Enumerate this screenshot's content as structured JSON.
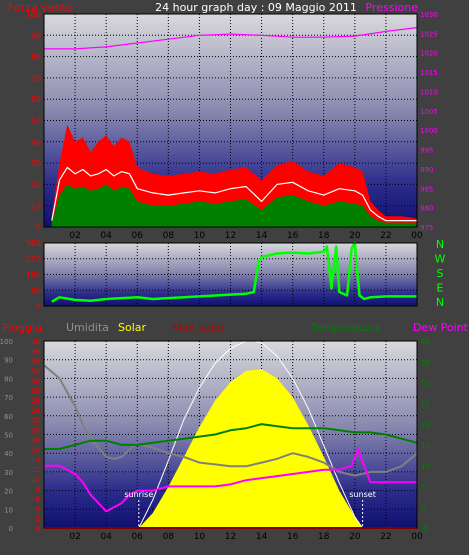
{
  "header": {
    "left_label": "Forza vento",
    "title": "24 hour graph day : 09 Maggio 2011",
    "right_label": "Pressione"
  },
  "legend_row": [
    {
      "label": "Pioggia",
      "color": "#ff0000"
    },
    {
      "label": "Umidita",
      "color": "#909090"
    },
    {
      "label": "Solar",
      "color": "#ffff00"
    },
    {
      "label": "Max solar",
      "color": "#c00000"
    },
    {
      "label": "Temperatura",
      "color": "#008000"
    },
    {
      "label": "Dew Point",
      "color": "#ff00ff"
    }
  ],
  "x_ticks": [
    "02",
    "04",
    "06",
    "08",
    "10",
    "12",
    "14",
    "16",
    "18",
    "20",
    "22",
    "00"
  ],
  "colors": {
    "background": "#404040",
    "grid": "#000000",
    "wind_gust": "#ff0000",
    "wind_avg": "#ffffff",
    "wind_speed": "#008000",
    "pressure": "#ff00ff",
    "direction": "#00ff00",
    "solar": "#ffff00",
    "max_solar": "#ffffff",
    "temperature": "#008000",
    "humidity": "#808080",
    "dew_point": "#ff00ff",
    "rain": "#ff0000"
  },
  "chart_data": [
    {
      "type": "line",
      "name": "wind-pressure",
      "left_axis": {
        "ticks": [
          "0",
          "10",
          "20",
          "30",
          "40",
          "50",
          "60",
          "70",
          "80",
          "90",
          "100"
        ],
        "ylim": [
          0,
          100
        ],
        "color": "#ff0000"
      },
      "right_axis": {
        "ticks": [
          "975",
          "980",
          "985",
          "990",
          "995",
          "1000",
          "1005",
          "1010",
          "1015",
          "1020",
          "1025",
          "1030"
        ],
        "ylim": [
          975,
          1030
        ],
        "color": "#ff00ff"
      },
      "xlim": [
        0,
        24
      ],
      "series": [
        {
          "key": "gust",
          "x": [
            0.5,
            1,
            1.5,
            2,
            2.5,
            3,
            3.5,
            4,
            4.5,
            5,
            5.5,
            6,
            7,
            8,
            9,
            10,
            11,
            12,
            13,
            14,
            15,
            16,
            17,
            18,
            19,
            20,
            20.5,
            21,
            21.5,
            22,
            23,
            24
          ],
          "values": [
            5,
            30,
            48,
            40,
            42,
            35,
            40,
            43,
            38,
            42,
            40,
            28,
            25,
            24,
            25,
            26,
            25,
            27,
            28,
            22,
            29,
            31,
            26,
            24,
            30,
            28,
            26,
            12,
            8,
            5,
            5,
            4
          ]
        },
        {
          "key": "avg",
          "x": [
            0.5,
            1,
            1.5,
            2,
            2.5,
            3,
            3.5,
            4,
            4.5,
            5,
            5.5,
            6,
            7,
            8,
            9,
            10,
            11,
            12,
            13,
            14,
            15,
            16,
            17,
            18,
            19,
            20,
            20.5,
            21,
            21.5,
            22,
            23,
            24
          ],
          "values": [
            3,
            22,
            28,
            25,
            27,
            24,
            25,
            27,
            24,
            26,
            25,
            18,
            16,
            15,
            16,
            17,
            16,
            18,
            19,
            12,
            20,
            21,
            17,
            15,
            18,
            17,
            15,
            8,
            5,
            3,
            3,
            3
          ]
        },
        {
          "key": "speed",
          "x": [
            0.5,
            1,
            1.5,
            2,
            2.5,
            3,
            3.5,
            4,
            4.5,
            5,
            5.5,
            6,
            7,
            8,
            9,
            10,
            11,
            12,
            13,
            14,
            15,
            16,
            17,
            18,
            19,
            20,
            20.5,
            21,
            21.5,
            22,
            23,
            24
          ],
          "values": [
            2,
            15,
            20,
            18,
            19,
            17,
            18,
            20,
            17,
            19,
            18,
            12,
            10,
            10,
            11,
            12,
            11,
            12,
            13,
            8,
            14,
            15,
            12,
            10,
            12,
            11,
            10,
            5,
            3,
            2,
            2,
            2
          ]
        },
        {
          "key": "pressure",
          "x": [
            0,
            2,
            4,
            6,
            8,
            10,
            12,
            14,
            16,
            18,
            20,
            22,
            24
          ],
          "values": [
            1021,
            1021,
            1021.5,
            1022.5,
            1023.5,
            1024.5,
            1024.8,
            1024.5,
            1024,
            1024,
            1024.3,
            1025.5,
            1026.5
          ]
        }
      ]
    },
    {
      "type": "line",
      "name": "wind-direction",
      "left_axis": {
        "ticks": [
          "0",
          "90",
          "180",
          "270",
          "360"
        ],
        "ylim": [
          0,
          360
        ],
        "color": "#ff0000"
      },
      "right_axis": {
        "ticks": [
          "N",
          "W",
          "S",
          "E",
          "N"
        ],
        "color": "#00ff00"
      },
      "xlim": [
        0,
        24
      ],
      "series": [
        {
          "key": "direction",
          "x": [
            0.5,
            1,
            2,
            3,
            4,
            5,
            6,
            7,
            8,
            9,
            10,
            11,
            12,
            13,
            13.5,
            13.8,
            14,
            15,
            16,
            17,
            18,
            18.2,
            18.5,
            18.8,
            19,
            19.5,
            19.8,
            20,
            20.3,
            20.6,
            21,
            22,
            23,
            24
          ],
          "values": [
            25,
            50,
            35,
            30,
            40,
            45,
            50,
            40,
            45,
            50,
            55,
            60,
            65,
            70,
            80,
            250,
            280,
            300,
            305,
            300,
            310,
            340,
            100,
            340,
            80,
            60,
            330,
            360,
            60,
            40,
            50,
            55,
            55,
            55
          ]
        }
      ]
    },
    {
      "type": "line",
      "name": "weather-solar",
      "left_axis_outer": {
        "ticks": [
          "0",
          "10",
          "20",
          "30",
          "40",
          "50",
          "60",
          "70",
          "80",
          "90",
          "100"
        ],
        "ylim": [
          0,
          100
        ],
        "color": "#909090"
      },
      "left_axis_inner": {
        "ticks": [
          "0",
          "2",
          "4",
          "6",
          "8",
          "10",
          "12",
          "14",
          "16",
          "18",
          "20",
          "22",
          "24",
          "26",
          "28",
          "30",
          "32",
          "34",
          "36",
          "38"
        ],
        "ylim": [
          0,
          38
        ],
        "color": "#ff0000"
      },
      "right_axis": {
        "ticks": [
          "-5",
          "0",
          "5",
          "10",
          "15",
          "20",
          "25",
          "30",
          "35",
          "40"
        ],
        "ylim": [
          -5,
          40
        ],
        "color": "#008000"
      },
      "annotations": {
        "sunrise_label": "sunrise",
        "sunrise_x": 6.1,
        "sunset_label": "sunset",
        "sunset_x": 20.5
      },
      "xlim": [
        0,
        24
      ],
      "series": [
        {
          "key": "solar",
          "x": [
            6.1,
            7,
            8,
            9,
            10,
            11,
            12,
            13,
            14,
            15,
            16,
            17,
            18,
            19,
            20,
            20.5
          ],
          "values": [
            0,
            8,
            22,
            38,
            54,
            68,
            78,
            84,
            85,
            80,
            70,
            55,
            38,
            20,
            6,
            0
          ]
        },
        {
          "key": "max_solar",
          "x": [
            6.1,
            7,
            8,
            9,
            10,
            11,
            12,
            13,
            13.5,
            14,
            15,
            16,
            17,
            18,
            19,
            20,
            20.5
          ],
          "values": [
            0,
            15,
            36,
            58,
            75,
            88,
            96,
            100,
            100,
            99,
            92,
            80,
            64,
            44,
            24,
            6,
            0
          ]
        },
        {
          "key": "temperature",
          "x": [
            0,
            1,
            2,
            3,
            4,
            5,
            6,
            7,
            8,
            9,
            10,
            11,
            12,
            13,
            14,
            15,
            16,
            17,
            18,
            19,
            20,
            21,
            22,
            23,
            24
          ],
          "values": [
            14,
            14,
            15,
            16,
            16,
            15,
            15,
            15.5,
            16,
            16.5,
            17,
            17.5,
            18.5,
            19,
            20,
            19.5,
            19,
            19,
            19,
            18.5,
            18,
            18,
            17.5,
            16.5,
            15.5
          ]
        },
        {
          "key": "humidity",
          "x": [
            0,
            1,
            2,
            2.5,
            3,
            3.5,
            4,
            4.5,
            5,
            5.5,
            6,
            7,
            8,
            9,
            10,
            11,
            12,
            13,
            14,
            15,
            16,
            17,
            18,
            19,
            20,
            21,
            22,
            23,
            24
          ],
          "values": [
            87,
            80,
            65,
            55,
            48,
            43,
            38,
            37,
            38,
            42,
            45,
            43,
            40,
            38,
            35,
            34,
            33,
            33,
            35,
            37,
            40,
            38,
            35,
            30,
            28,
            30,
            30,
            33,
            40
          ]
        },
        {
          "key": "dew_point",
          "x": [
            0,
            1,
            2,
            2.5,
            3,
            3.5,
            4,
            4.5,
            5,
            5.5,
            6,
            7,
            8,
            9,
            10,
            11,
            12,
            13,
            14,
            15,
            16,
            17,
            18,
            19,
            19.8,
            20,
            20.2,
            20.6,
            21,
            22,
            23,
            24
          ],
          "values": [
            10,
            10,
            8,
            6,
            3,
            1,
            -1,
            0,
            1,
            3,
            4,
            4,
            5,
            5,
            5,
            5,
            5.5,
            6.5,
            7,
            7.5,
            8,
            8.5,
            9,
            9,
            10,
            12,
            14,
            10,
            6,
            6,
            6,
            6
          ]
        },
        {
          "key": "rain",
          "x": [
            0,
            24
          ],
          "values": [
            0,
            0
          ]
        }
      ]
    }
  ]
}
